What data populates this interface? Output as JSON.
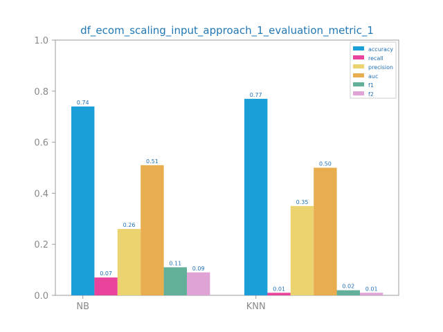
{
  "chart_data": {
    "type": "bar",
    "title": "df_ecom_scaling_input_approach_1_evaluation_metric_1",
    "xlabel": "",
    "ylabel": "",
    "categories": [
      "NB",
      "KNN"
    ],
    "ylim": [
      0,
      1.0
    ],
    "yticks": [
      "0.0",
      "0.2",
      "0.4",
      "0.6",
      "0.8",
      "1.0"
    ],
    "grid": false,
    "legend_position": "top-right",
    "series": [
      {
        "name": "accuracy",
        "color": "#1a9fd8",
        "values": [
          0.74,
          0.77
        ],
        "labels": [
          "0.74",
          "0.77"
        ]
      },
      {
        "name": "recall",
        "color": "#e8449b",
        "values": [
          0.07,
          0.01
        ],
        "labels": [
          "0.07",
          "0.01"
        ]
      },
      {
        "name": "precision",
        "color": "#ebd470",
        "values": [
          0.26,
          0.35
        ],
        "labels": [
          "0.26",
          "0.35"
        ]
      },
      {
        "name": "auc",
        "color": "#e8ad4f",
        "values": [
          0.51,
          0.5
        ],
        "labels": [
          "0.51",
          "0.50"
        ]
      },
      {
        "name": "f1",
        "color": "#62b09a",
        "values": [
          0.11,
          0.02
        ],
        "labels": [
          "0.11",
          "0.02"
        ]
      },
      {
        "name": "f2",
        "color": "#e0a3d5",
        "values": [
          0.09,
          0.01
        ],
        "labels": [
          "0.09",
          "0.01"
        ]
      }
    ]
  }
}
